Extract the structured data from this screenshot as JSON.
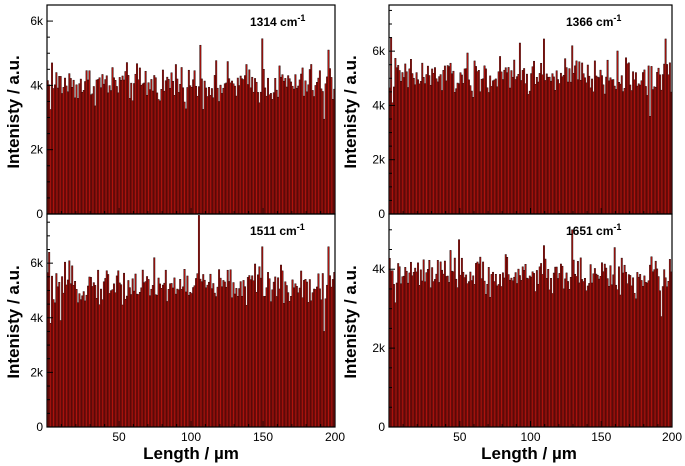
{
  "figure": {
    "xlabel": "Length / µm",
    "ylabel": "Intenisty / a.u."
  },
  "colors": {
    "bar_fill": "#b3140f",
    "bar_edge": "#1a0000",
    "axis": "#000000"
  },
  "chart_data": [
    {
      "type": "bar",
      "label": "1314 cm",
      "label_sup": "-1",
      "ylabel": "Intenisty / a.u.",
      "xlabel": "",
      "xlim": [
        0,
        200
      ],
      "ylim": [
        0,
        6500
      ],
      "yticks": [
        0,
        2000,
        4000,
        6000
      ],
      "ytick_labels": [
        "0",
        "2k",
        "4k",
        "6k"
      ],
      "xticks": [],
      "xtick_labels": [],
      "n_bars": 200,
      "baseline": 4050,
      "spread": 420,
      "peaks": [
        [
          107,
          5250
        ],
        [
          150,
          5450
        ],
        [
          196,
          5100
        ],
        [
          4,
          4700
        ],
        [
          90,
          4650
        ]
      ],
      "dips": [
        [
          193,
          2950
        ],
        [
          3,
          3250
        ],
        [
          120,
          3500
        ]
      ]
    },
    {
      "type": "bar",
      "label": "1366 cm",
      "label_sup": "-1",
      "ylabel": "Intenisty / a.u.",
      "xlabel": "",
      "xlim": [
        0,
        200
      ],
      "ylim": [
        0,
        7700
      ],
      "yticks": [
        0,
        2000,
        4000,
        6000
      ],
      "ytick_labels": [
        "0",
        "2k",
        "4k",
        "6k"
      ],
      "xticks": [],
      "xtick_labels": [],
      "n_bars": 200,
      "baseline": 5050,
      "spread": 500,
      "peaks": [
        [
          2,
          6500
        ],
        [
          110,
          6450
        ],
        [
          196,
          6450
        ],
        [
          93,
          6300
        ],
        [
          130,
          6200
        ]
      ],
      "dips": [
        [
          185,
          3600
        ],
        [
          3,
          4100
        ],
        [
          60,
          4300
        ]
      ]
    },
    {
      "type": "bar",
      "label": "1511 cm",
      "label_sup": "-1",
      "ylabel": "Intenisty / a.u.",
      "xlabel": "Length / µm",
      "xlim": [
        0,
        200
      ],
      "ylim": [
        0,
        7800
      ],
      "yticks": [
        0,
        2000,
        4000,
        6000
      ],
      "ytick_labels": [
        "0",
        "2k",
        "4k",
        "6k"
      ],
      "xticks": [
        50,
        100,
        150,
        200
      ],
      "xtick_labels": [
        "50",
        "100",
        "150",
        "200"
      ],
      "n_bars": 200,
      "baseline": 5200,
      "spread": 480,
      "peaks": [
        [
          106,
          7750
        ],
        [
          2,
          6400
        ],
        [
          150,
          6600
        ],
        [
          196,
          6600
        ],
        [
          75,
          6200
        ]
      ],
      "dips": [
        [
          193,
          3500
        ],
        [
          3,
          3800
        ],
        [
          10,
          3900
        ]
      ]
    },
    {
      "type": "bar",
      "label": "1651 cm",
      "label_sup": "-1",
      "ylabel": "Intenisty / a.u.",
      "xlabel": "Length / µm",
      "xlim": [
        0,
        200
      ],
      "ylim": [
        0,
        5400
      ],
      "yticks": [
        0,
        2000,
        4000
      ],
      "ytick_labels": [
        "0",
        "2k",
        "4k"
      ],
      "xticks": [
        50,
        100,
        150,
        200
      ],
      "xtick_labels": [
        "50",
        "100",
        "150",
        "200"
      ],
      "n_bars": 200,
      "baseline": 3850,
      "spread": 330,
      "peaks": [
        [
          130,
          5000
        ],
        [
          175,
          4800
        ],
        [
          50,
          4750
        ],
        [
          110,
          4600
        ],
        [
          160,
          4550
        ]
      ],
      "dips": [
        [
          193,
          2800
        ],
        [
          5,
          3150
        ],
        [
          175,
          3250
        ]
      ]
    }
  ]
}
